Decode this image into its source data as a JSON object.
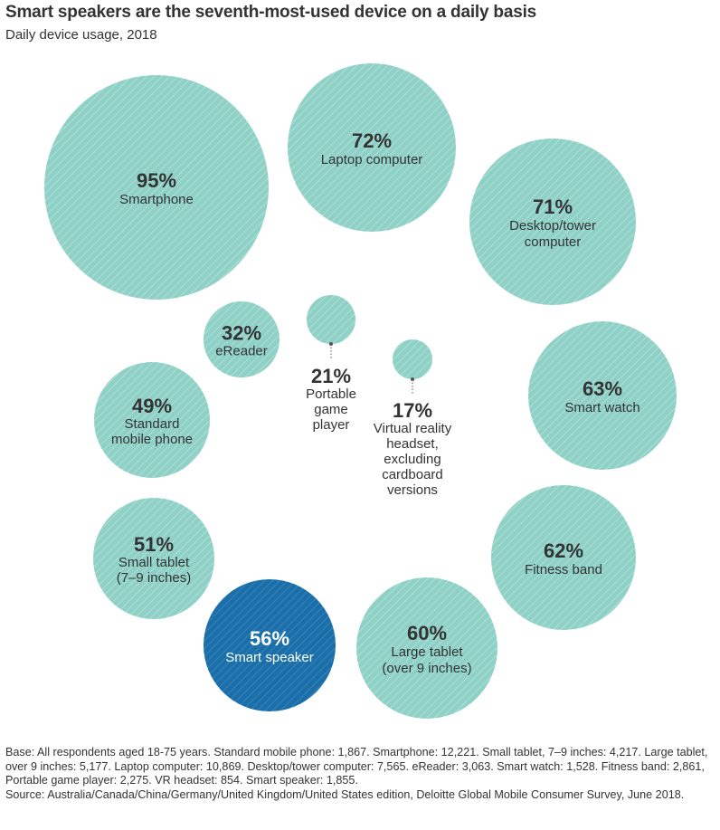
{
  "title": "Smart speakers are the seventh-most-used device on a daily basis",
  "subtitle": "Daily device usage, 2018",
  "colors": {
    "bubble_fill": "#8fd1c7",
    "bubble_hatch": "#b9e3dc",
    "highlight_fill": "#1b6ea8",
    "highlight_hatch": "#3b8cc4",
    "text": "#333333",
    "highlight_text": "#ffffff"
  },
  "chart_data": {
    "type": "bubble",
    "unit": "%",
    "items": [
      {
        "label": "Smartphone",
        "value": 95,
        "value_label": "95%"
      },
      {
        "label": "Laptop computer",
        "value": 72,
        "value_label": "72%"
      },
      {
        "label": "Desktop/tower computer",
        "value": 71,
        "value_label": "71%"
      },
      {
        "label": "Smart watch",
        "value": 63,
        "value_label": "63%"
      },
      {
        "label": "Fitness band",
        "value": 62,
        "value_label": "62%"
      },
      {
        "label": "Large tablet (over 9 inches)",
        "value": 60,
        "value_label": "60%"
      },
      {
        "label": "Smart speaker",
        "value": 56,
        "value_label": "56%",
        "highlight": true
      },
      {
        "label": "Small tablet (7–9 inches)",
        "value": 51,
        "value_label": "51%"
      },
      {
        "label": "Standard mobile phone",
        "value": 49,
        "value_label": "49%"
      },
      {
        "label": "eReader",
        "value": 32,
        "value_label": "32%"
      },
      {
        "label": "Portable game player",
        "value": 21,
        "value_label": "21%"
      },
      {
        "label": "Virtual reality headset, excluding cardboard versions",
        "value": 17,
        "value_label": "17%"
      }
    ]
  },
  "footnote": {
    "base": "Base: All respondents aged 18-75 years. Standard mobile phone: 1,867. Smartphone: 12,221. Small tablet, 7–9 inches: 4,217. Large tablet, over 9 inches: 5,177. Laptop computer: 10,869. Desktop/tower computer: 7,565. eReader: 3,063. Smart watch: 1,528. Fitness band: 2,861, Portable game player: 2,275. VR headset: 854. Smart speaker: 1,855.",
    "source": "Source: Australia/Canada/China/Germany/United Kingdom/United States edition, Deloitte Global Mobile Consumer Survey, June 2018."
  }
}
